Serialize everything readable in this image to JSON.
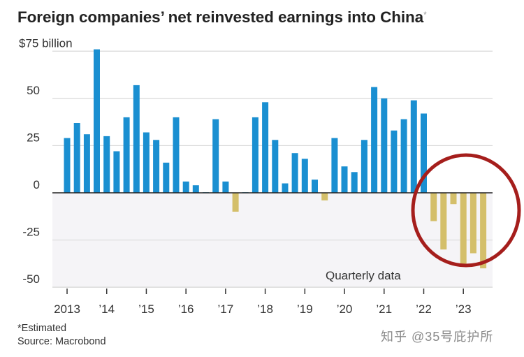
{
  "chart_data": {
    "type": "bar",
    "title": "Foreign companies’ net reinvested earnings into China",
    "title_marker": "*",
    "ylabel": "billion",
    "y_unit_prefix": "$",
    "ylim": [
      -55,
      77
    ],
    "y_ticks": [
      {
        "value": 75,
        "label": "$75 billion"
      },
      {
        "value": 50,
        "label": "50"
      },
      {
        "value": 25,
        "label": "25"
      },
      {
        "value": 0,
        "label": "0"
      },
      {
        "value": -25,
        "label": "-25"
      },
      {
        "value": -50,
        "label": "-50"
      }
    ],
    "x_ticks": [
      "2013",
      "’14",
      "’15",
      "’16",
      "’17",
      "’18",
      "’19",
      "’20",
      "’21",
      "’22",
      "’23"
    ],
    "grid": true,
    "annotation": "Quarterly data",
    "categories": [
      "2013 Q1",
      "2013 Q2",
      "2013 Q3",
      "2013 Q4",
      "2014 Q1",
      "2014 Q2",
      "2014 Q3",
      "2014 Q4",
      "2015 Q1",
      "2015 Q2",
      "2015 Q3",
      "2015 Q4",
      "2016 Q1",
      "2016 Q2",
      "2016 Q3",
      "2016 Q4",
      "2017 Q1",
      "2017 Q2",
      "2017 Q3",
      "2017 Q4",
      "2018 Q1",
      "2018 Q2",
      "2018 Q3",
      "2018 Q4",
      "2019 Q1",
      "2019 Q2",
      "2019 Q3",
      "2019 Q4",
      "2020 Q1",
      "2020 Q2",
      "2020 Q3",
      "2020 Q4",
      "2021 Q1",
      "2021 Q2",
      "2021 Q3",
      "2021 Q4",
      "2022 Q1",
      "2022 Q2",
      "2022 Q3",
      "2022 Q4",
      "2023 Q1",
      "2023 Q2",
      "2023 Q3"
    ],
    "values": [
      29,
      37,
      31,
      76,
      30,
      22,
      40,
      57,
      32,
      28,
      16,
      40,
      6,
      4,
      0.3,
      39,
      6,
      -10,
      0.3,
      40,
      48,
      28,
      5,
      21,
      18,
      7,
      -4,
      29,
      14,
      11,
      28,
      56,
      50,
      33,
      39,
      49,
      42,
      -15,
      -30,
      -6,
      -39,
      -32,
      -40
    ],
    "colors": {
      "positive": "#1a8fd1",
      "negative": "#d4bf6a",
      "highlight_circle": "#a51e1c",
      "zero_line": "#222222",
      "grid": "#d9d9d9",
      "negative_band": "#f5f4f7"
    },
    "highlight": "circle around 2022 Q2 – 2023 Q3"
  },
  "footer": {
    "note": "*Estimated",
    "source": "Source: Macrobond"
  },
  "watermark": "知乎 @35号庇护所"
}
